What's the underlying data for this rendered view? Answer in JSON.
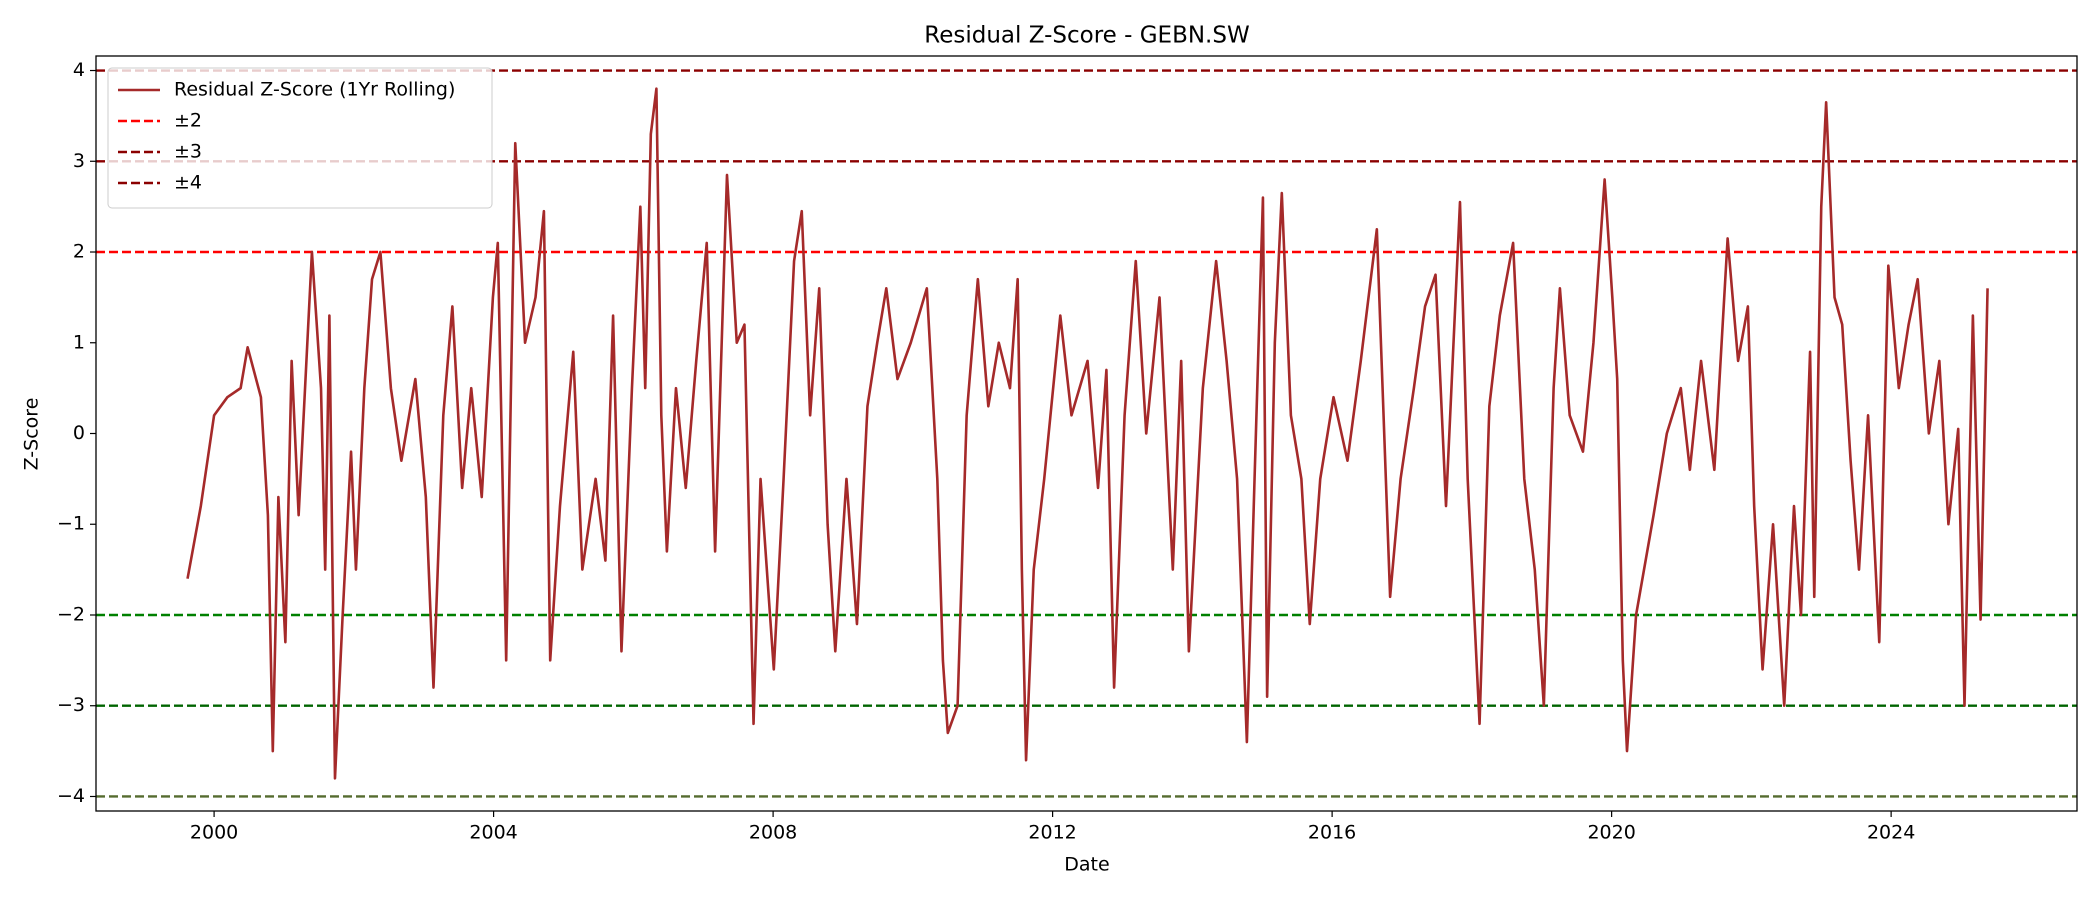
{
  "chart_data": {
    "type": "line",
    "title": "Residual Z-Score - GEBN.SW",
    "xlabel": "Date",
    "ylabel": "Z-Score",
    "x": [
      1999.62,
      1999.81,
      2000.0,
      2000.19,
      2000.38,
      2000.48,
      2000.67,
      2000.77,
      2000.84,
      2000.92,
      2001.02,
      2001.11,
      2001.21,
      2001.4,
      2001.53,
      2001.59,
      2001.65,
      2001.73,
      2001.84,
      2001.96,
      2002.03,
      2002.15,
      2002.26,
      2002.38,
      2002.53,
      2002.68,
      2002.88,
      2003.03,
      2003.14,
      2003.28,
      2003.41,
      2003.55,
      2003.68,
      2003.83,
      2003.99,
      2004.06,
      2004.18,
      2004.31,
      2004.45,
      2004.6,
      2004.72,
      2004.81,
      2004.95,
      2005.14,
      2005.27,
      2005.46,
      2005.6,
      2005.71,
      2005.83,
      2005.98,
      2006.1,
      2006.17,
      2006.25,
      2006.33,
      2006.4,
      2006.48,
      2006.61,
      2006.75,
      2006.9,
      2007.05,
      2007.17,
      2007.34,
      2007.48,
      2007.59,
      2007.72,
      2007.82,
      2008.01,
      2008.15,
      2008.3,
      2008.41,
      2008.53,
      2008.66,
      2008.78,
      2008.89,
      2009.05,
      2009.2,
      2009.35,
      2009.49,
      2009.62,
      2009.78,
      2009.97,
      2010.2,
      2010.35,
      2010.43,
      2010.5,
      2010.64,
      2010.77,
      2010.93,
      2011.08,
      2011.23,
      2011.39,
      2011.5,
      2011.56,
      2011.62,
      2011.73,
      2011.88,
      2012.11,
      2012.27,
      2012.5,
      2012.65,
      2012.77,
      2012.88,
      2013.03,
      2013.19,
      2013.34,
      2013.53,
      2013.72,
      2013.84,
      2013.95,
      2014.15,
      2014.34,
      2014.49,
      2014.64,
      2014.78,
      2014.89,
      2015.01,
      2015.07,
      2015.18,
      2015.28,
      2015.41,
      2015.56,
      2015.68,
      2015.83,
      2016.02,
      2016.22,
      2016.41,
      2016.64,
      2016.83,
      2016.98,
      2017.17,
      2017.33,
      2017.48,
      2017.63,
      2017.83,
      2017.94,
      2018.11,
      2018.25,
      2018.4,
      2018.59,
      2018.75,
      2018.9,
      2019.03,
      2019.17,
      2019.26,
      2019.4,
      2019.59,
      2019.74,
      2019.9,
      2020.01,
      2020.08,
      2020.16,
      2020.22,
      2020.35,
      2020.6,
      2020.79,
      2020.99,
      2021.12,
      2021.28,
      2021.47,
      2021.66,
      2021.81,
      2021.95,
      2022.04,
      2022.16,
      2022.31,
      2022.47,
      2022.61,
      2022.71,
      2022.84,
      2022.9,
      2023.0,
      2023.07,
      2023.19,
      2023.3,
      2023.42,
      2023.54,
      2023.67,
      2023.83,
      2023.96,
      2024.11,
      2024.25,
      2024.38,
      2024.54,
      2024.69,
      2024.82,
      2024.96,
      2025.05,
      2025.17,
      2025.28,
      2025.38
    ],
    "series": [
      {
        "name": "Residual Z-Score (1Yr Rolling)",
        "color": "#a52a2a",
        "values": [
          -1.6,
          -0.8,
          0.2,
          0.4,
          0.5,
          0.95,
          0.4,
          -0.9,
          -3.5,
          -0.7,
          -2.3,
          0.8,
          -0.9,
          2.0,
          0.5,
          -1.5,
          1.3,
          -3.8,
          -2.0,
          -0.2,
          -1.5,
          0.5,
          1.7,
          2.0,
          0.5,
          -0.3,
          0.6,
          -0.7,
          -2.8,
          0.2,
          1.4,
          -0.6,
          0.5,
          -0.7,
          1.5,
          2.1,
          -2.5,
          3.2,
          1.0,
          1.5,
          2.45,
          -2.5,
          -0.8,
          0.9,
          -1.5,
          -0.5,
          -1.4,
          1.3,
          -2.4,
          0.5,
          2.5,
          0.5,
          3.3,
          3.8,
          0.2,
          -1.3,
          0.5,
          -0.6,
          0.8,
          2.1,
          -1.3,
          2.85,
          1.0,
          1.2,
          -3.2,
          -0.5,
          -2.6,
          -0.5,
          1.9,
          2.45,
          0.2,
          1.6,
          -1.0,
          -2.4,
          -0.5,
          -2.1,
          0.3,
          1.0,
          1.6,
          0.6,
          1.0,
          1.6,
          -0.5,
          -2.5,
          -3.3,
          -3.0,
          0.2,
          1.7,
          0.3,
          1.0,
          0.5,
          1.7,
          -1.5,
          -3.6,
          -1.5,
          -0.5,
          1.3,
          0.2,
          0.8,
          -0.6,
          0.7,
          -2.8,
          0.2,
          1.9,
          0.0,
          1.5,
          -1.5,
          0.8,
          -2.4,
          0.5,
          1.9,
          0.8,
          -0.5,
          -3.4,
          -0.5,
          2.6,
          -2.9,
          1.0,
          2.65,
          0.2,
          -0.5,
          -2.1,
          -0.5,
          0.4,
          -0.3,
          0.8,
          2.25,
          -1.8,
          -0.5,
          0.5,
          1.4,
          1.75,
          -0.8,
          2.55,
          -0.5,
          -3.2,
          0.3,
          1.3,
          2.1,
          -0.5,
          -1.5,
          -3.0,
          0.5,
          1.6,
          0.2,
          -0.2,
          1.0,
          2.8,
          1.5,
          0.6,
          -2.5,
          -3.5,
          -2.0,
          -0.9,
          0.0,
          0.5,
          -0.4,
          0.8,
          -0.4,
          2.15,
          0.8,
          1.4,
          -0.8,
          -2.6,
          -1.0,
          -3.0,
          -0.8,
          -2.0,
          0.9,
          -1.8,
          2.5,
          3.65,
          1.5,
          1.2,
          -0.3,
          -1.5,
          0.2,
          -2.3,
          1.85,
          0.5,
          1.2,
          1.7,
          0.0,
          0.8,
          -1.0,
          0.05,
          -3.0,
          1.3,
          -2.05,
          1.6
        ]
      }
    ],
    "reference_lines": [
      {
        "name": "±2",
        "values": [
          2,
          -2
        ],
        "colors": [
          "#ff0000",
          "#008000"
        ]
      },
      {
        "name": "±3",
        "values": [
          3,
          -3
        ],
        "colors": [
          "#8b0000",
          "#006400"
        ]
      },
      {
        "name": "±4",
        "values": [
          4,
          -4
        ],
        "colors": [
          "#8b0000",
          "#556b2f"
        ]
      }
    ],
    "xlim": [
      1998.31,
      2026.66
    ],
    "ylim": [
      -4.16,
      4.16
    ],
    "xticks": [
      2000,
      2004,
      2008,
      2012,
      2016,
      2020,
      2024
    ],
    "yticks": [
      {
        "value": -4,
        "label": "−4"
      },
      {
        "value": -3,
        "label": "−3"
      },
      {
        "value": -2,
        "label": "−2"
      },
      {
        "value": -1,
        "label": "−1"
      },
      0,
      1,
      2,
      3,
      4
    ],
    "legend": "upper left",
    "grid": false
  }
}
